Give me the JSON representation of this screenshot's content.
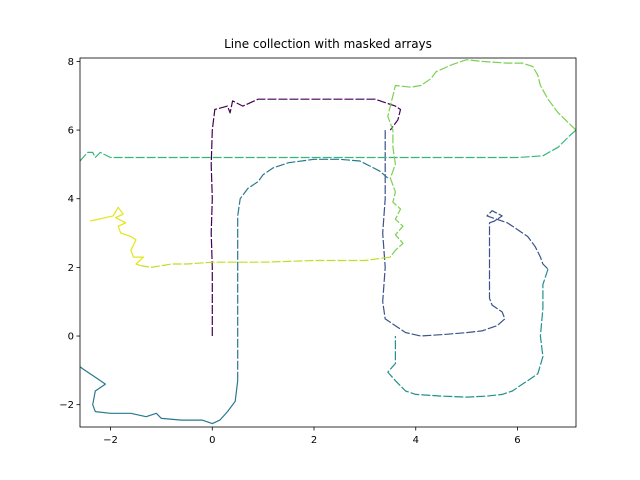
{
  "chart_data": {
    "type": "line",
    "title": "Line collection with masked arrays",
    "xlabel": "",
    "ylabel": "",
    "xlim": [
      -2.6,
      7.15
    ],
    "ylim": [
      -2.65,
      8.1
    ],
    "grid": false,
    "legend": "none",
    "x_ticks": [
      -2,
      0,
      2,
      4,
      6
    ],
    "y_ticks": [
      -2,
      0,
      2,
      4,
      6,
      8
    ],
    "x_tick_labels": [
      "−2",
      "0",
      "2",
      "4",
      "6"
    ],
    "y_tick_labels": [
      "−2",
      "0",
      "2",
      "4",
      "6",
      "8"
    ],
    "series": [
      {
        "color": "#440154",
        "dashed": true,
        "points": [
          [
            0,
            0
          ],
          [
            0,
            1
          ],
          [
            0,
            2
          ],
          [
            -0.02,
            3
          ],
          [
            0,
            4
          ],
          [
            -0.02,
            5
          ],
          [
            0,
            6
          ],
          [
            0.05,
            6.6
          ],
          [
            0.3,
            6.7
          ],
          [
            0.35,
            6.5
          ],
          [
            0.4,
            6.85
          ],
          [
            0.6,
            6.7
          ],
          [
            0.9,
            6.9
          ],
          [
            1.5,
            6.9
          ],
          [
            2.5,
            6.9
          ],
          [
            3.2,
            6.9
          ],
          [
            3.6,
            6.7
          ],
          [
            3.7,
            6.6
          ],
          [
            3.65,
            6.3
          ],
          [
            3.5,
            6.0
          ]
        ]
      },
      {
        "color": "#3b528b",
        "dashed": true,
        "points": [
          [
            3.4,
            6.0
          ],
          [
            3.4,
            5.0
          ],
          [
            3.4,
            4.0
          ],
          [
            3.35,
            3.0
          ],
          [
            3.4,
            2.0
          ],
          [
            3.35,
            1.0
          ],
          [
            3.4,
            0.5
          ],
          [
            3.6,
            0.3
          ],
          [
            3.8,
            0.1
          ],
          [
            4.1,
            0.0
          ],
          [
            4.6,
            0.05
          ],
          [
            5.0,
            0.1
          ],
          [
            5.3,
            0.15
          ],
          [
            5.6,
            0.3
          ],
          [
            5.75,
            0.5
          ],
          [
            5.7,
            0.7
          ],
          [
            5.5,
            0.9
          ],
          [
            5.45,
            1.1
          ],
          [
            5.45,
            1.5
          ],
          [
            5.45,
            2.0
          ],
          [
            5.45,
            2.5
          ],
          [
            5.45,
            3.0
          ],
          [
            5.45,
            3.3
          ],
          [
            5.55,
            3.35
          ],
          [
            5.7,
            3.5
          ],
          [
            5.5,
            3.65
          ],
          [
            5.4,
            3.5
          ],
          [
            5.8,
            3.3
          ],
          [
            6.0,
            3.1
          ],
          [
            6.2,
            2.9
          ],
          [
            6.35,
            2.6
          ],
          [
            6.45,
            2.3
          ],
          [
            6.5,
            2.1
          ],
          [
            6.6,
            1.95
          ]
        ]
      },
      {
        "color": "#21918c",
        "dashed": true,
        "points": [
          [
            6.6,
            1.95
          ],
          [
            6.5,
            1.5
          ],
          [
            6.5,
            0.8
          ],
          [
            6.45,
            0.0
          ],
          [
            6.5,
            -0.6
          ],
          [
            6.4,
            -1.1
          ],
          [
            6.2,
            -1.3
          ],
          [
            6.05,
            -1.45
          ],
          [
            5.9,
            -1.6
          ],
          [
            5.7,
            -1.7
          ],
          [
            5.4,
            -1.75
          ],
          [
            5.0,
            -1.78
          ],
          [
            4.5,
            -1.75
          ],
          [
            4.0,
            -1.7
          ],
          [
            3.8,
            -1.6
          ],
          [
            3.6,
            -1.3
          ],
          [
            3.45,
            -1.05
          ],
          [
            3.6,
            -0.8
          ],
          [
            3.6,
            -0.3
          ],
          [
            3.6,
            0.0
          ]
        ]
      },
      {
        "color": "#2a788e",
        "dashed": true,
        "points": [
          [
            0.5,
            -1.3
          ],
          [
            0.5,
            -0.5
          ],
          [
            0.5,
            0.5
          ],
          [
            0.5,
            1.5
          ],
          [
            0.5,
            2.5
          ],
          [
            0.5,
            3.5
          ],
          [
            0.55,
            4.0
          ],
          [
            0.7,
            4.3
          ],
          [
            0.9,
            4.5
          ],
          [
            1.0,
            4.7
          ],
          [
            1.2,
            4.9
          ],
          [
            1.5,
            5.05
          ],
          [
            2.0,
            5.15
          ],
          [
            2.5,
            5.15
          ],
          [
            2.9,
            5.1
          ],
          [
            3.1,
            4.95
          ],
          [
            3.3,
            4.8
          ],
          [
            3.45,
            4.6
          ]
        ]
      },
      {
        "color": "#29788e",
        "dashed": false,
        "points": [
          [
            0.5,
            -1.3
          ],
          [
            0.45,
            -1.9
          ],
          [
            0.3,
            -2.2
          ],
          [
            0.15,
            -2.45
          ],
          [
            0.0,
            -2.55
          ],
          [
            -0.2,
            -2.45
          ],
          [
            -0.6,
            -2.45
          ],
          [
            -1.0,
            -2.4
          ],
          [
            -1.1,
            -2.25
          ],
          [
            -1.3,
            -2.35
          ],
          [
            -1.6,
            -2.25
          ],
          [
            -2.0,
            -2.25
          ],
          [
            -2.3,
            -2.2
          ],
          [
            -2.35,
            -2.0
          ],
          [
            -2.3,
            -1.6
          ],
          [
            -2.1,
            -1.4
          ],
          [
            -2.3,
            -1.2
          ],
          [
            -2.5,
            -1.0
          ],
          [
            -2.6,
            -0.9
          ]
        ]
      },
      {
        "color": "#35b779",
        "dashed": true,
        "points": [
          [
            -2.6,
            5.1
          ],
          [
            -2.45,
            5.35
          ],
          [
            -2.35,
            5.35
          ],
          [
            -2.3,
            5.2
          ],
          [
            -2.2,
            5.35
          ],
          [
            -2.0,
            5.2
          ],
          [
            -1.5,
            5.2
          ],
          [
            -1.0,
            5.2
          ],
          [
            0.0,
            5.2
          ],
          [
            1.0,
            5.2
          ],
          [
            2.0,
            5.2
          ],
          [
            3.0,
            5.2
          ],
          [
            4.0,
            5.2
          ],
          [
            5.0,
            5.2
          ],
          [
            6.0,
            5.2
          ],
          [
            6.5,
            5.25
          ],
          [
            6.8,
            5.5
          ],
          [
            7.0,
            5.8
          ],
          [
            7.15,
            6.0
          ]
        ]
      },
      {
        "color": "#7ad151",
        "dashed": true,
        "points": [
          [
            7.15,
            6.0
          ],
          [
            6.8,
            6.5
          ],
          [
            6.6,
            6.9
          ],
          [
            6.45,
            7.3
          ],
          [
            6.4,
            7.6
          ],
          [
            6.3,
            7.85
          ],
          [
            6.1,
            7.95
          ],
          [
            5.8,
            7.95
          ],
          [
            5.3,
            8.0
          ],
          [
            5.0,
            8.05
          ],
          [
            4.7,
            7.9
          ],
          [
            4.4,
            7.7
          ],
          [
            4.3,
            7.5
          ],
          [
            4.1,
            7.3
          ],
          [
            3.9,
            7.25
          ],
          [
            3.6,
            7.3
          ],
          [
            3.55,
            7.0
          ],
          [
            3.5,
            6.7
          ],
          [
            3.45,
            6.4
          ],
          [
            3.55,
            6.0
          ],
          [
            3.55,
            5.5
          ],
          [
            3.6,
            5.0
          ],
          [
            3.5,
            4.6
          ],
          [
            3.6,
            4.2
          ],
          [
            3.55,
            3.9
          ],
          [
            3.7,
            3.7
          ],
          [
            3.6,
            3.4
          ],
          [
            3.75,
            3.2
          ],
          [
            3.6,
            2.95
          ],
          [
            3.75,
            2.7
          ],
          [
            3.6,
            2.5
          ],
          [
            3.5,
            2.3
          ]
        ]
      },
      {
        "color": "#bddf26",
        "dashed": true,
        "points": [
          [
            3.5,
            2.3
          ],
          [
            3.0,
            2.2
          ],
          [
            2.0,
            2.2
          ],
          [
            1.0,
            2.15
          ],
          [
            0.0,
            2.15
          ],
          [
            -0.5,
            2.1
          ],
          [
            -0.8,
            2.1
          ],
          [
            -1.0,
            2.05
          ],
          [
            -1.2,
            2.0
          ],
          [
            -1.4,
            2.05
          ]
        ]
      },
      {
        "color": "#e5e419",
        "dashed": false,
        "points": [
          [
            -1.4,
            2.05
          ],
          [
            -1.5,
            2.1
          ],
          [
            -1.35,
            2.3
          ],
          [
            -1.55,
            2.3
          ],
          [
            -1.6,
            2.5
          ],
          [
            -1.5,
            2.8
          ],
          [
            -1.6,
            2.9
          ],
          [
            -1.8,
            3.0
          ],
          [
            -1.85,
            3.2
          ],
          [
            -1.7,
            3.3
          ],
          [
            -1.9,
            3.45
          ],
          [
            -1.75,
            3.55
          ],
          [
            -1.85,
            3.75
          ],
          [
            -1.95,
            3.5
          ],
          [
            -2.4,
            3.35
          ]
        ]
      }
    ]
  }
}
